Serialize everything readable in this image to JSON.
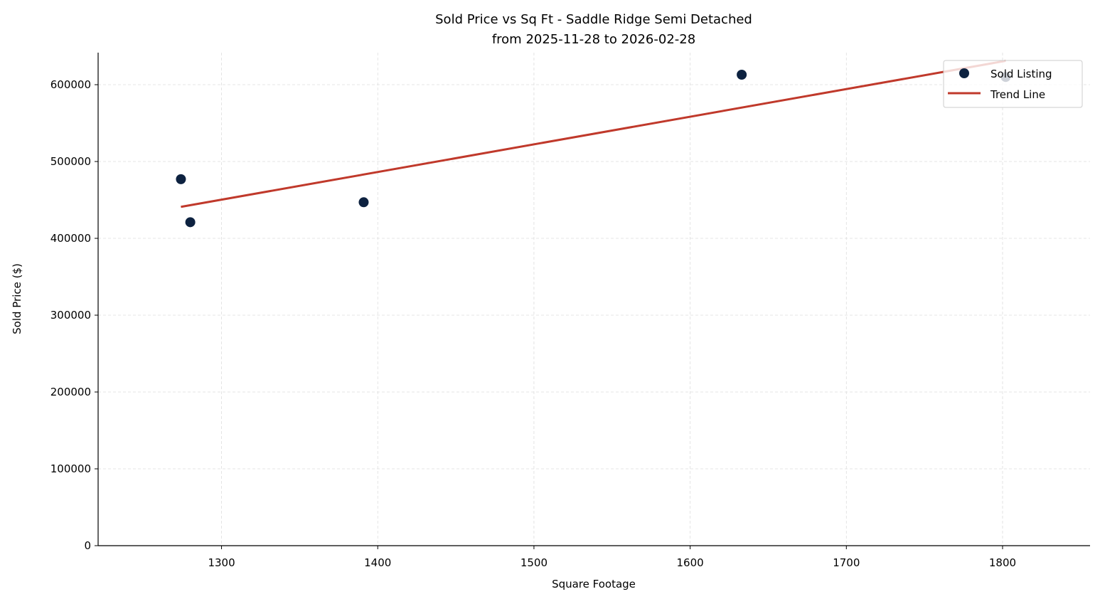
{
  "chart_data": {
    "type": "scatter",
    "title": "Sold Price vs Sq Ft - Saddle Ridge Semi Detached",
    "subtitle": "from 2025-11-28 to 2026-02-28",
    "xlabel": "Square Footage",
    "ylabel": "Sold Price ($)",
    "xlim": [
      1221,
      1856
    ],
    "ylim": [
      0,
      641700
    ],
    "xticks": [
      1300,
      1400,
      1500,
      1600,
      1700,
      1800
    ],
    "yticks": [
      0,
      100000,
      200000,
      300000,
      400000,
      500000,
      600000
    ],
    "grid": true,
    "legend_position": "top-right",
    "series": [
      {
        "name": "Sold Listing",
        "type": "scatter",
        "color": "#0d2240",
        "points": [
          {
            "x": 1274,
            "y": 477000
          },
          {
            "x": 1280,
            "y": 421000
          },
          {
            "x": 1391,
            "y": 447000
          },
          {
            "x": 1633,
            "y": 613000
          },
          {
            "x": 1802,
            "y": 610000
          }
        ]
      },
      {
        "name": "Trend Line",
        "type": "line",
        "color": "#c0392b",
        "points": [
          {
            "x": 1274,
            "y": 441000
          },
          {
            "x": 1802,
            "y": 631000
          }
        ]
      }
    ]
  }
}
